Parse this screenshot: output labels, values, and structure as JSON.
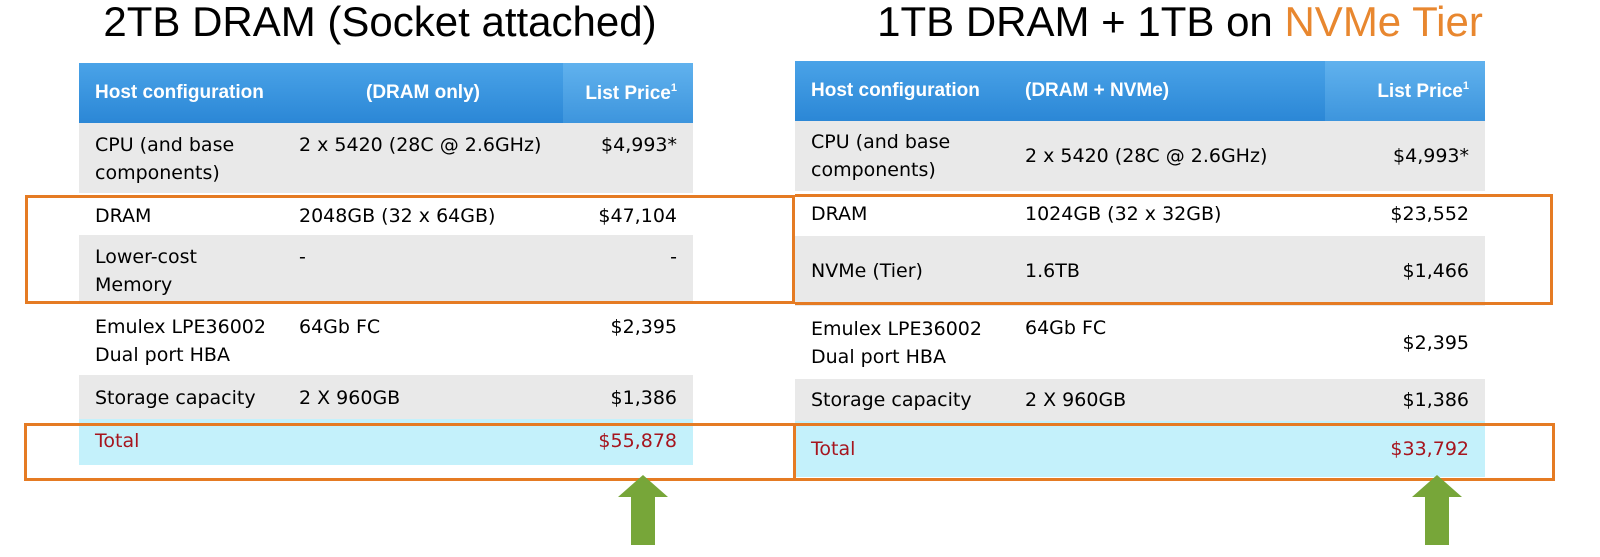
{
  "left": {
    "title": "2TB DRAM (Socket attached)",
    "headers": {
      "config": "Host configuration",
      "detail": "(DRAM only)",
      "price": "List Price",
      "price_sup": "1"
    },
    "rows": [
      {
        "item": "CPU (and base components)",
        "detail": "2 x 5420  (28C @ 2.6GHz)",
        "price": "$4,993*"
      },
      {
        "item": "DRAM",
        "detail": "2048GB (32 x 64GB)",
        "price": "$47,104"
      },
      {
        "item": "Lower-cost Memory",
        "detail": "-",
        "price": "-"
      },
      {
        "item": "Emulex LPE36002 Dual port HBA",
        "detail": "64Gb FC",
        "price": "$2,395"
      },
      {
        "item": "Storage capacity",
        "detail": "2 X 960GB",
        "price": "$1,386"
      }
    ],
    "total": {
      "label": "Total",
      "price": "$55,878"
    }
  },
  "right": {
    "title_main": "1TB DRAM + 1TB on ",
    "title_accent": "NVMe Tier",
    "headers": {
      "config": "Host configuration",
      "detail": "(DRAM + NVMe)",
      "price": "List Price",
      "price_sup": "1"
    },
    "rows": [
      {
        "item": "CPU (and base components)",
        "detail": "2 x 5420 (28C @ 2.6GHz)",
        "price": "$4,993*"
      },
      {
        "item": "DRAM",
        "detail": "1024GB (32 x 32GB)",
        "price": "$23,552"
      },
      {
        "item": "NVMe (Tier)",
        "detail": "1.6TB",
        "price": "$1,466"
      },
      {
        "item": "Emulex LPE36002 Dual port HBA",
        "detail": "64Gb FC",
        "price": "$2,395"
      },
      {
        "item": "Storage capacity",
        "detail": "2 X 960GB",
        "price": "$1,386"
      }
    ],
    "total": {
      "label": "Total",
      "price": "$33,792"
    }
  },
  "colors": {
    "header_blue": "#2b87d6",
    "row_shade": "#e9e9e9",
    "total_row": "#c4f1fb",
    "total_text": "#a6151e",
    "highlight_orange": "#e57b23",
    "title_accent": "#e8872f",
    "arrow_green": "#77a639"
  }
}
